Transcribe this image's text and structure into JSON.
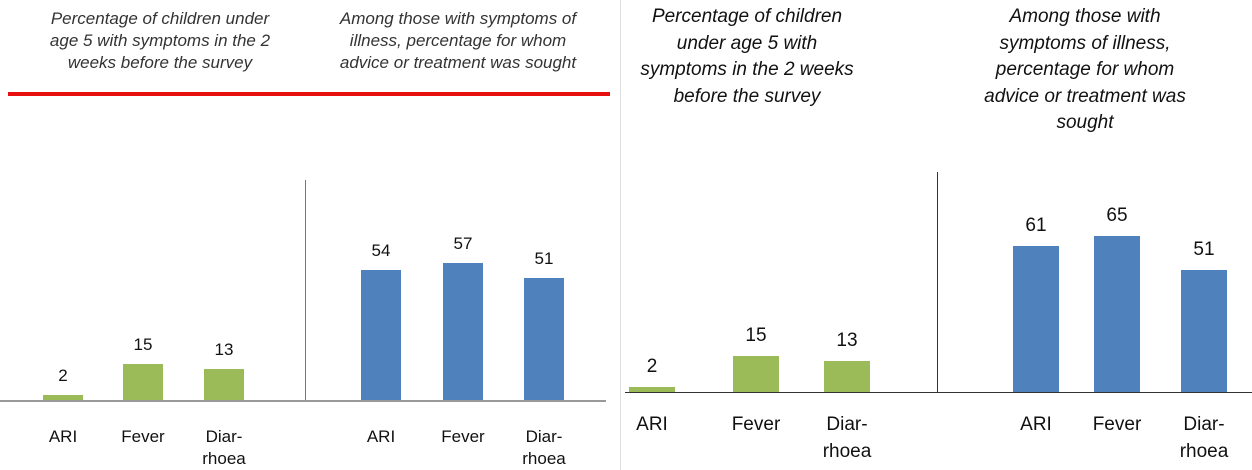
{
  "chart_data": [
    {
      "type": "bar",
      "title": "Percentage of children under age 5 with symptoms in the 2 weeks before the survey",
      "categories": [
        "ARI",
        "Fever",
        "Diar-\nrhoea"
      ],
      "values": [
        2,
        15,
        13
      ],
      "color": "#9bbb59",
      "ylim": [
        0,
        100
      ]
    },
    {
      "type": "bar",
      "title": "Among those with symptoms of illness, percentage for whom advice or treatment was sought",
      "categories": [
        "ARI",
        "Fever",
        "Diar-\nrhoea"
      ],
      "values": [
        54,
        57,
        51
      ],
      "color": "#4f81bd",
      "ylim": [
        0,
        100
      ]
    },
    {
      "type": "bar",
      "title": "Percentage of children under age 5 with symptoms in the 2 weeks before the survey",
      "categories": [
        "ARI",
        "Fever",
        "Diar-\nrhoea"
      ],
      "values": [
        2,
        15,
        13
      ],
      "color": "#9bbb59",
      "ylim": [
        0,
        100
      ]
    },
    {
      "type": "bar",
      "title": "Among those with symptoms of illness, percentage for whom advice or treatment was sought",
      "categories": [
        "ARI",
        "Fever",
        "Diar-\nrhoea"
      ],
      "values": [
        61,
        65,
        51
      ],
      "color": "#4f81bd",
      "ylim": [
        0,
        100
      ]
    }
  ]
}
